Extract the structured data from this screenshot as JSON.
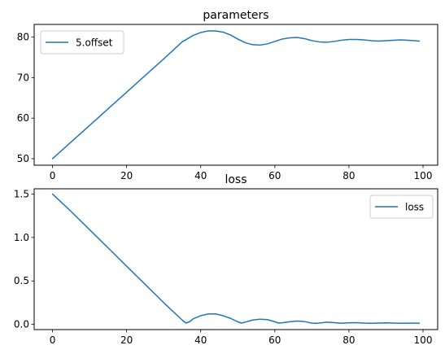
{
  "chart_data": [
    {
      "type": "line",
      "title": "parameters",
      "xlabel": "",
      "ylabel": "",
      "xlim": [
        -4.95,
        103.95
      ],
      "ylim": [
        48.4,
        83.1
      ],
      "x_ticks": [
        0,
        20,
        40,
        60,
        80,
        100
      ],
      "y_ticks": [
        50,
        60,
        70,
        80
      ],
      "legend_position": "top-left",
      "grid": false,
      "series": [
        {
          "name": "5.offset",
          "color": "#1f77b4",
          "x": [
            0,
            5,
            10,
            15,
            20,
            25,
            30,
            35,
            38,
            40,
            42,
            44,
            46,
            48,
            50,
            52,
            54,
            56,
            58,
            60,
            62,
            64,
            66,
            68,
            70,
            72,
            74,
            76,
            78,
            80,
            82,
            84,
            86,
            88,
            90,
            92,
            94,
            96,
            99
          ],
          "y": [
            50.0,
            54.1,
            58.2,
            62.3,
            66.4,
            70.5,
            74.6,
            78.8,
            80.4,
            81.1,
            81.5,
            81.5,
            81.2,
            80.5,
            79.5,
            78.6,
            78.1,
            78.0,
            78.3,
            78.9,
            79.5,
            79.8,
            79.9,
            79.6,
            79.1,
            78.8,
            78.7,
            78.9,
            79.2,
            79.4,
            79.4,
            79.3,
            79.1,
            79.0,
            79.1,
            79.2,
            79.3,
            79.2,
            79.0
          ]
        }
      ]
    },
    {
      "type": "line",
      "title": "loss",
      "xlabel": "",
      "ylabel": "",
      "xlim": [
        -4.95,
        103.95
      ],
      "ylim": [
        -0.06,
        1.56
      ],
      "x_ticks": [
        0,
        20,
        40,
        60,
        80,
        100
      ],
      "y_ticks": [
        0.0,
        0.5,
        1.0,
        1.5
      ],
      "y_tick_labels": [
        "0.0",
        "0.5",
        "1.0",
        "1.5"
      ],
      "legend_position": "top-right",
      "grid": false,
      "series": [
        {
          "name": "loss",
          "color": "#1f77b4",
          "x": [
            0,
            5,
            10,
            15,
            20,
            25,
            30,
            35,
            36,
            37,
            38,
            40,
            42,
            44,
            46,
            48,
            50,
            51,
            52,
            54,
            56,
            58,
            60,
            61,
            62,
            64,
            66,
            68,
            70,
            71,
            72,
            74,
            76,
            78,
            80,
            82,
            84,
            86,
            88,
            90,
            92,
            94,
            96,
            99
          ],
          "y": [
            1.5,
            1.3,
            1.09,
            0.88,
            0.67,
            0.46,
            0.25,
            0.05,
            0.015,
            0.03,
            0.065,
            0.1,
            0.12,
            0.12,
            0.1,
            0.07,
            0.03,
            0.015,
            0.025,
            0.05,
            0.06,
            0.055,
            0.03,
            0.015,
            0.018,
            0.03,
            0.038,
            0.032,
            0.015,
            0.012,
            0.015,
            0.025,
            0.02,
            0.013,
            0.018,
            0.02,
            0.015,
            0.013,
            0.015,
            0.017,
            0.015,
            0.013,
            0.014,
            0.014
          ]
        }
      ]
    }
  ]
}
